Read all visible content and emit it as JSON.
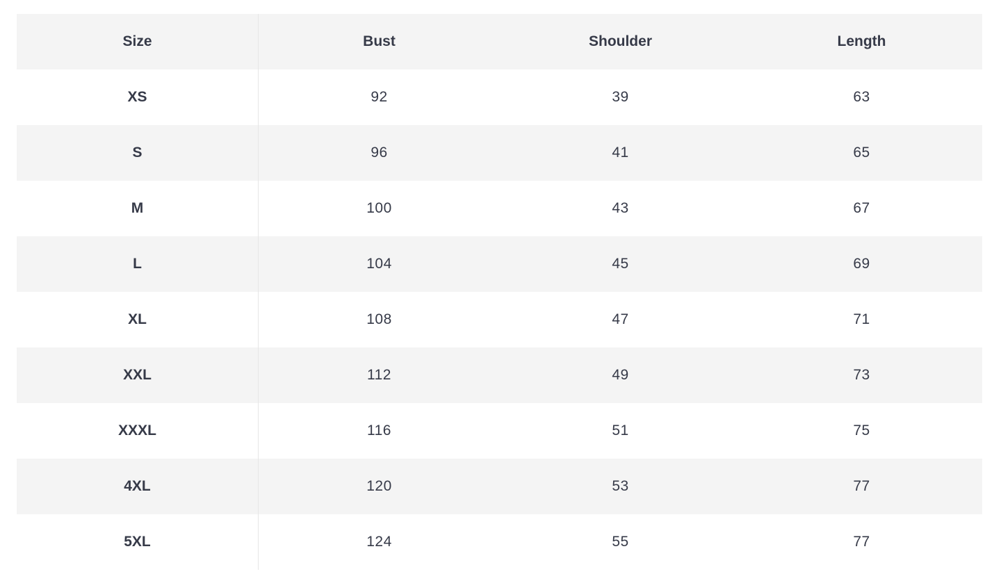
{
  "table": {
    "headers": [
      "Size",
      "Bust",
      "Shoulder",
      "Length"
    ],
    "rows": [
      [
        "XS",
        "92",
        "39",
        "63"
      ],
      [
        "S",
        "96",
        "41",
        "65"
      ],
      [
        "M",
        "100",
        "43",
        "67"
      ],
      [
        "L",
        "104",
        "45",
        "69"
      ],
      [
        "XL",
        "108",
        "47",
        "71"
      ],
      [
        "XXL",
        "112",
        "49",
        "73"
      ],
      [
        "XXXL",
        "116",
        "51",
        "75"
      ],
      [
        "4XL",
        "120",
        "53",
        "77"
      ],
      [
        "5XL",
        "124",
        "55",
        "77"
      ]
    ]
  }
}
